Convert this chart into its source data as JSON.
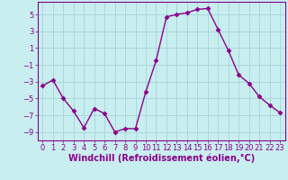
{
  "x": [
    0,
    1,
    2,
    3,
    4,
    5,
    6,
    7,
    8,
    9,
    10,
    11,
    12,
    13,
    14,
    15,
    16,
    17,
    18,
    19,
    20,
    21,
    22,
    23
  ],
  "y": [
    -3.5,
    -2.8,
    -5.0,
    -6.5,
    -8.5,
    -6.2,
    -6.8,
    -9.0,
    -8.6,
    -8.6,
    -4.2,
    -0.5,
    4.7,
    5.0,
    5.2,
    5.6,
    5.7,
    3.2,
    0.7,
    -2.2,
    -3.2,
    -4.8,
    -5.8,
    -6.7
  ],
  "line_color": "#8B008B",
  "marker": "D",
  "marker_size": 2.5,
  "bg_color": "#c8eef0",
  "grid_color": "#b0dde0",
  "xlabel": "Windchill (Refroidissement éolien,°C)",
  "ylim": [
    -10,
    6.5
  ],
  "xlim": [
    -0.5,
    23.5
  ],
  "yticks": [
    -9,
    -7,
    -5,
    -3,
    -1,
    1,
    3,
    5
  ],
  "xticks": [
    0,
    1,
    2,
    3,
    4,
    5,
    6,
    7,
    8,
    9,
    10,
    11,
    12,
    13,
    14,
    15,
    16,
    17,
    18,
    19,
    20,
    21,
    22,
    23
  ],
  "tick_color": "#8B008B",
  "label_color": "#8B008B",
  "label_fontsize": 7.0,
  "tick_fontsize": 6.0,
  "spine_color": "#8B008B",
  "linewidth": 1.0
}
